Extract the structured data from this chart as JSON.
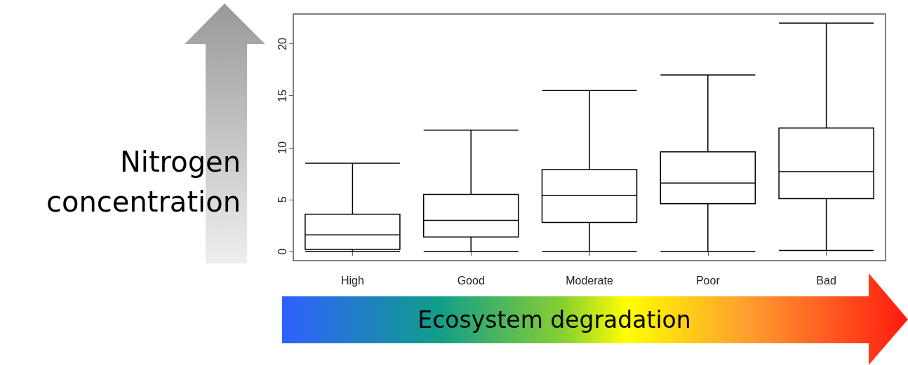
{
  "chart_data": {
    "type": "box",
    "xlabel": "Ecosystem degradation",
    "ylabel": "Nitrogen concentration",
    "categories": [
      "High",
      "Good",
      "Moderate",
      "Poor",
      "Bad"
    ],
    "color": "#000000",
    "boxes": [
      {
        "low": 0,
        "q1": 0.2,
        "median": 1.6,
        "q3": 3.6,
        "high": 8.5
      },
      {
        "low": 0,
        "q1": 1.4,
        "median": 3.0,
        "q3": 5.5,
        "high": 11.7
      },
      {
        "low": 0,
        "q1": 2.8,
        "median": 5.4,
        "q3": 7.9,
        "high": 15.5
      },
      {
        "low": 0,
        "q1": 4.6,
        "median": 6.6,
        "q3": 9.6,
        "high": 17.0
      },
      {
        "low": 0.1,
        "q1": 5.1,
        "median": 7.7,
        "q3": 11.9,
        "high": 22.0
      }
    ],
    "ylim": [
      -0.88,
      22.88
    ],
    "yticks": [
      0,
      5,
      10,
      15,
      20
    ]
  }
}
